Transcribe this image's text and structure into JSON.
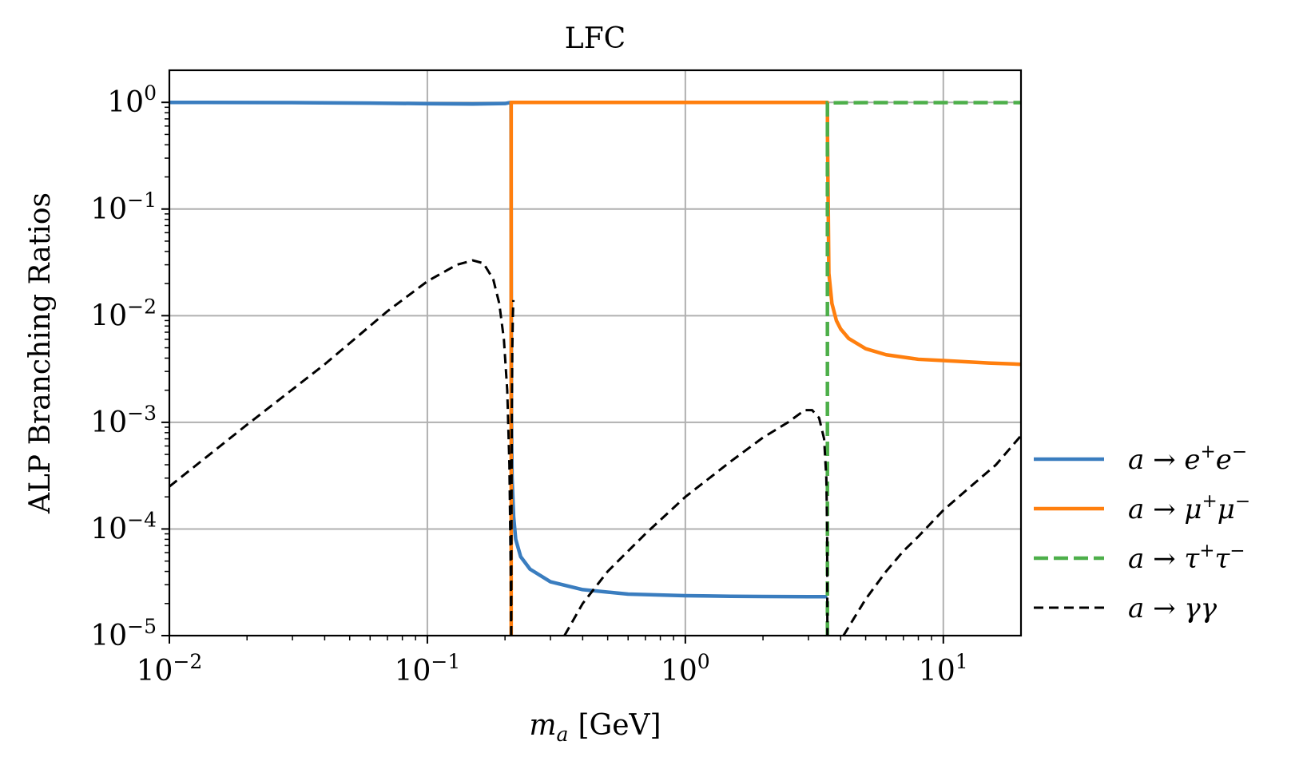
{
  "chart_data": {
    "type": "line",
    "title": "LFC",
    "xlabel": {
      "main": "m",
      "sub": "a",
      "unit": "[GeV]"
    },
    "ylabel": "ALP Branching Ratios",
    "x_scale": "log",
    "y_scale": "log",
    "xlim": [
      0.01,
      20
    ],
    "ylim": [
      1e-05,
      2
    ],
    "grid": true,
    "legend_position": "right",
    "x_ticks": [
      {
        "value": 0.01,
        "base": "10",
        "exp": "−2"
      },
      {
        "value": 0.1,
        "base": "10",
        "exp": "−1"
      },
      {
        "value": 1,
        "base": "10",
        "exp": "0"
      },
      {
        "value": 10,
        "base": "10",
        "exp": "1"
      }
    ],
    "y_ticks": [
      {
        "value": 1,
        "base": "10",
        "exp": "0"
      },
      {
        "value": 0.1,
        "base": "10",
        "exp": "−1"
      },
      {
        "value": 0.01,
        "base": "10",
        "exp": "−2"
      },
      {
        "value": 0.001,
        "base": "10",
        "exp": "−3"
      },
      {
        "value": 0.0001,
        "base": "10",
        "exp": "−4"
      },
      {
        "value": 1e-05,
        "base": "10",
        "exp": "−5"
      }
    ],
    "series": [
      {
        "name": "a → e⁺e⁻",
        "legend": {
          "pre": "a → e",
          "sup1": "+",
          "mid": "e",
          "sup2": "−"
        },
        "color": "#3a7dbf",
        "style": "solid",
        "x": [
          0.01,
          0.03,
          0.06,
          0.1,
          0.15,
          0.2,
          0.211,
          0.2113,
          0.2118,
          0.213,
          0.216,
          0.22,
          0.23,
          0.25,
          0.3,
          0.4,
          0.6,
          1,
          1.5,
          2,
          3,
          3.55
        ],
        "y": [
          1.0,
          0.995,
          0.985,
          0.972,
          0.965,
          0.975,
          1.0,
          0.06,
          0.0012,
          0.0003,
          0.00013,
          8e-05,
          5.5e-05,
          4.2e-05,
          3.2e-05,
          2.7e-05,
          2.45e-05,
          2.37e-05,
          2.34e-05,
          2.33e-05,
          2.32e-05,
          2.32e-05
        ]
      },
      {
        "name": "a → μ⁺μ⁻",
        "legend": {
          "pre": "a → μ",
          "sup1": "+",
          "mid": "μ",
          "sup2": "−"
        },
        "color": "#ff7f0e",
        "style": "solid",
        "x": [
          0.2113,
          0.2113,
          0.3,
          0.6,
          1,
          2,
          3,
          3.555,
          3.556,
          3.6,
          3.7,
          3.85,
          4.0,
          4.3,
          5,
          6,
          8,
          10,
          15,
          20
        ],
        "y": [
          1e-05,
          1.0,
          1.0,
          1.0,
          1.0,
          1.0,
          1.0,
          1.0,
          0.5,
          0.025,
          0.013,
          0.009,
          0.0075,
          0.0061,
          0.0049,
          0.0043,
          0.0039,
          0.0038,
          0.0036,
          0.0035
        ]
      },
      {
        "name": "a → τ⁺τ⁻",
        "legend": {
          "pre": "a → τ",
          "sup1": "+",
          "mid": "τ",
          "sup2": "−"
        },
        "color": "#4daf4a",
        "style": "dashed",
        "x": [
          3.554,
          3.554,
          3.6,
          5,
          10,
          20
        ],
        "y": [
          1e-05,
          0.99,
          0.99,
          0.995,
          0.996,
          0.996
        ]
      },
      {
        "name": "a → γγ",
        "legend": {
          "pre": "a → γγ",
          "sup1": "",
          "mid": "",
          "sup2": ""
        },
        "color": "#000000",
        "style": "dashed",
        "segments": [
          {
            "x": [
              0.01,
              0.02,
              0.04,
              0.07,
              0.1,
              0.13,
              0.15,
              0.165,
              0.18,
              0.19,
              0.198,
              0.204,
              0.208,
              0.2105,
              0.2112
            ],
            "y": [
              0.00025,
              0.00095,
              0.0035,
              0.011,
              0.021,
              0.03,
              0.033,
              0.031,
              0.022,
              0.013,
              0.006,
              0.002,
              0.0004,
              4e-05,
              1e-05
            ]
          },
          {
            "x": [
              0.2115,
              0.2118,
              0.2125,
              0.2135,
              0.2145,
              0.2155
            ],
            "y": [
              1e-05,
              0.0001,
              0.001,
              0.005,
              0.01,
              0.014
            ]
          },
          {
            "x": [
              0.34,
              0.4,
              0.5,
              0.7,
              1,
              1.5,
              2,
              2.5,
              2.9,
              3.1,
              3.3,
              3.45,
              3.52,
              3.545,
              3.553
            ],
            "y": [
              1e-05,
              2e-05,
              4e-05,
              9e-05,
              0.0002,
              0.00043,
              0.00072,
              0.001,
              0.0013,
              0.0013,
              0.0011,
              0.0007,
              0.0003,
              0.0001,
              1e-05
            ]
          },
          {
            "x": [
              4.1,
              4.5,
              5,
              6,
              7,
              8,
              10,
              13,
              16,
              20
            ],
            "y": [
              1e-05,
              1.45e-05,
              2.2e-05,
              4e-05,
              6.2e-05,
              8.5e-05,
              0.00015,
              0.00026,
              0.0004,
              0.00075
            ]
          }
        ]
      }
    ]
  }
}
